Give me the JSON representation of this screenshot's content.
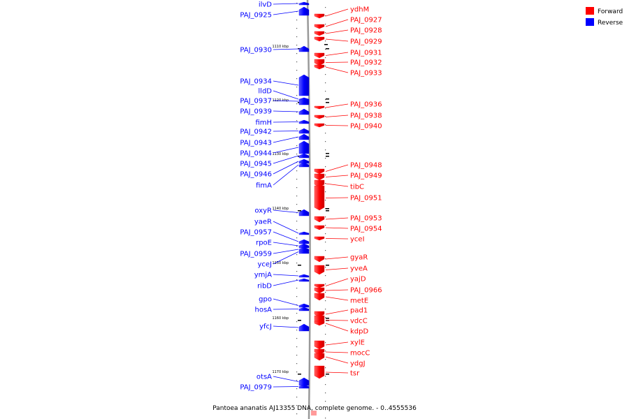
{
  "caption": "Pantoea ananatis AJ13355 DNA, complete genome. - 0..4555536",
  "legend": [
    {
      "label": "Forward",
      "color": "#ff0000"
    },
    {
      "label": "Reverse",
      "color": "#0000ff"
    }
  ],
  "scale_ticks": [
    "1110 kbp",
    "1120 kbp",
    "1130 kbp",
    "1140 kbp",
    "1150 kbp",
    "1160 kbp",
    "1170 kbp"
  ],
  "reverse_genes": [
    "ilvD",
    "PAJ_0925",
    "PAJ_0930",
    "PAJ_0934",
    "lldD",
    "PAJ_0937",
    "PAJ_0939",
    "fimH",
    "PAJ_0942",
    "PAJ_0943",
    "PAJ_0944",
    "PAJ_0945",
    "PAJ_0946",
    "fimA",
    "oxyR",
    "yaeR",
    "PAJ_0957",
    "rpoE",
    "PAJ_0959",
    "yceJ",
    "ymjA",
    "ribD",
    "gpo",
    "hosA",
    "yfcJ",
    "otsA",
    "PAJ_0979"
  ],
  "forward_genes": [
    "ydhM",
    "PAJ_0927",
    "PAJ_0928",
    "PAJ_0929",
    "PAJ_0931",
    "PAJ_0932",
    "PAJ_0933",
    "PAJ_0936",
    "PAJ_0938",
    "PAJ_0940",
    "PAJ_0948",
    "PAJ_0949",
    "tibC",
    "PAJ_0951",
    "PAJ_0953",
    "PAJ_0954",
    "yceI",
    "gyaR",
    "yveA",
    "yajD",
    "PAJ_0966",
    "metE",
    "pad1",
    "vdcC",
    "kdpD",
    "xylE",
    "mocC",
    "ydgJ",
    "tsr"
  ],
  "colors": {
    "forward": "#ff0000",
    "reverse": "#0000ff",
    "backbone": "#999999"
  }
}
